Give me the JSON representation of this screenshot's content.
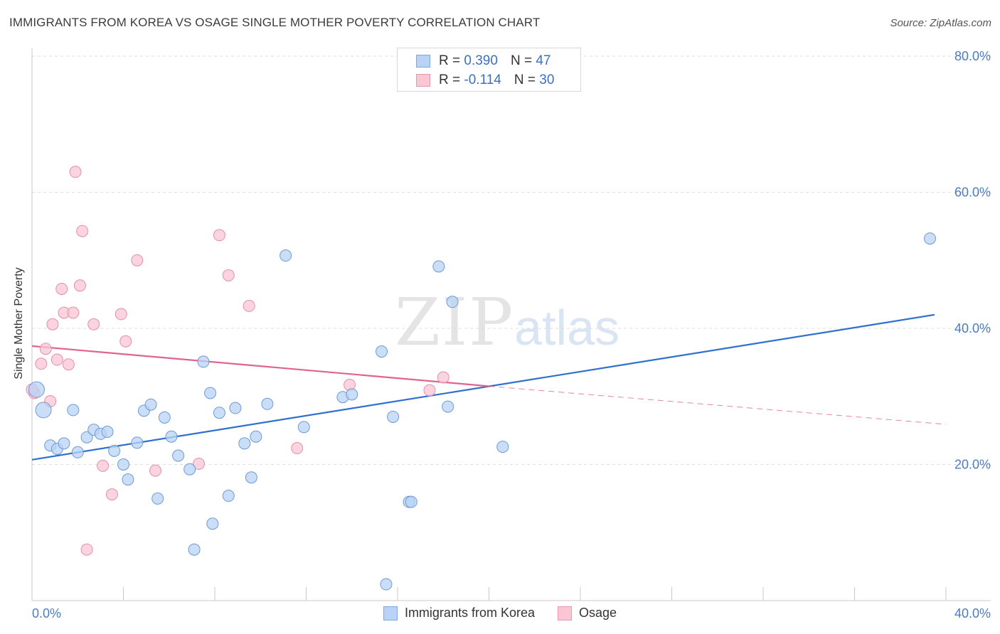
{
  "header": {
    "title": "IMMIGRANTS FROM KOREA VS OSAGE SINGLE MOTHER POVERTY CORRELATION CHART",
    "source": "Source: ZipAtlas.com"
  },
  "watermark": {
    "zip": "ZIP",
    "atlas": "atlas"
  },
  "legend": {
    "rows": [
      {
        "r_label": "R =",
        "r_value": "0.390",
        "n_label": "N =",
        "n_value": "47",
        "color": "#b8d3f5",
        "border": "#7ea8de"
      },
      {
        "r_label": "R =",
        "r_value": "-0.114",
        "n_label": "N =",
        "n_value": "30",
        "color": "#f9c6d4",
        "border": "#e996b0"
      }
    ]
  },
  "colors": {
    "blue_fill": "#b8d3f5",
    "blue_stroke": "#6d9ad6",
    "blue_line": "#2e6fd0",
    "pink_fill": "#f9c6d4",
    "pink_stroke": "#e58fab",
    "pink_line": "#e0648f",
    "grid": "#dcdcdc",
    "tick_text": "#4a7cc4"
  },
  "chart_data": {
    "type": "scatter",
    "title": "IMMIGRANTS FROM KOREA VS OSAGE SINGLE MOTHER POVERTY CORRELATION CHART",
    "xlabel": "",
    "ylabel": "Single Mother Poverty",
    "xlim": [
      0,
      40
    ],
    "ylim": [
      0,
      80
    ],
    "x_tick_labels": [
      "0.0%",
      "40.0%"
    ],
    "y_tick_labels": [
      "20.0%",
      "40.0%",
      "60.0%",
      "80.0%"
    ],
    "y_ticks": [
      20,
      40,
      60,
      80
    ],
    "grid": true,
    "legend_position": "top-center",
    "series": [
      {
        "name": "Immigrants from Korea",
        "points": [
          [
            0.2,
            31.0
          ],
          [
            0.5,
            28.0
          ],
          [
            0.8,
            22.8
          ],
          [
            1.1,
            22.3
          ],
          [
            1.4,
            23.1
          ],
          [
            1.8,
            28.0
          ],
          [
            2.0,
            21.8
          ],
          [
            2.4,
            24.0
          ],
          [
            2.7,
            25.1
          ],
          [
            3.0,
            24.5
          ],
          [
            3.3,
            24.8
          ],
          [
            3.6,
            22.0
          ],
          [
            4.0,
            20.0
          ],
          [
            4.2,
            17.8
          ],
          [
            4.6,
            23.2
          ],
          [
            4.9,
            27.9
          ],
          [
            5.2,
            28.8
          ],
          [
            5.5,
            15.0
          ],
          [
            5.8,
            26.9
          ],
          [
            6.1,
            24.1
          ],
          [
            6.4,
            21.3
          ],
          [
            6.9,
            19.3
          ],
          [
            7.1,
            7.5
          ],
          [
            7.5,
            35.1
          ],
          [
            7.8,
            30.5
          ],
          [
            7.9,
            11.3
          ],
          [
            8.2,
            27.6
          ],
          [
            8.6,
            15.4
          ],
          [
            8.9,
            28.3
          ],
          [
            9.3,
            23.1
          ],
          [
            9.6,
            18.1
          ],
          [
            9.8,
            24.1
          ],
          [
            10.3,
            28.9
          ],
          [
            11.1,
            50.7
          ],
          [
            11.9,
            25.5
          ],
          [
            13.6,
            29.9
          ],
          [
            14.0,
            30.3
          ],
          [
            15.3,
            36.6
          ],
          [
            15.5,
            2.4
          ],
          [
            15.8,
            27.0
          ],
          [
            16.5,
            14.5
          ],
          [
            16.6,
            14.5
          ],
          [
            17.8,
            49.1
          ],
          [
            18.2,
            28.5
          ],
          [
            18.4,
            43.9
          ],
          [
            20.6,
            22.6
          ],
          [
            39.3,
            53.2
          ]
        ],
        "trend": {
          "x": [
            0,
            39.5
          ],
          "y": [
            20.7,
            42.0
          ]
        }
      },
      {
        "name": "Osage",
        "points": [
          [
            0.1,
            30.5
          ],
          [
            0.4,
            34.8
          ],
          [
            0.6,
            37.0
          ],
          [
            0.8,
            29.3
          ],
          [
            0.9,
            40.6
          ],
          [
            1.1,
            35.4
          ],
          [
            1.3,
            45.8
          ],
          [
            1.4,
            42.3
          ],
          [
            1.6,
            34.7
          ],
          [
            1.8,
            42.3
          ],
          [
            1.9,
            63.0
          ],
          [
            2.1,
            46.3
          ],
          [
            2.2,
            54.3
          ],
          [
            2.4,
            7.5
          ],
          [
            2.7,
            40.6
          ],
          [
            3.1,
            19.8
          ],
          [
            3.5,
            15.6
          ],
          [
            3.9,
            42.1
          ],
          [
            4.1,
            38.1
          ],
          [
            4.6,
            50.0
          ],
          [
            5.4,
            19.1
          ],
          [
            7.3,
            20.1
          ],
          [
            8.2,
            53.7
          ],
          [
            8.6,
            47.8
          ],
          [
            9.5,
            43.3
          ],
          [
            11.6,
            22.4
          ],
          [
            13.9,
            31.7
          ],
          [
            17.4,
            30.9
          ],
          [
            18.0,
            32.8
          ],
          [
            0.0,
            31.0
          ]
        ],
        "trend": {
          "x": [
            0,
            20.0
          ],
          "y": [
            37.4,
            31.5
          ]
        },
        "trend_dashed": {
          "x": [
            20.0,
            40.0
          ],
          "y": [
            31.5,
            25.9
          ]
        }
      }
    ]
  },
  "bottom_legend": [
    {
      "label": "Immigrants from Korea"
    },
    {
      "label": "Osage"
    }
  ]
}
